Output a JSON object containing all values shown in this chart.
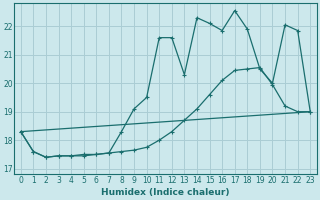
{
  "xlabel": "Humidex (Indice chaleur)",
  "background_color": "#cce8ec",
  "grid_color": "#aacdd4",
  "line_color": "#1a6e6e",
  "xlim": [
    -0.5,
    23.5
  ],
  "ylim": [
    16.8,
    22.8
  ],
  "yticks": [
    17,
    18,
    19,
    20,
    21,
    22
  ],
  "xticks": [
    0,
    1,
    2,
    3,
    4,
    5,
    6,
    7,
    8,
    9,
    10,
    11,
    12,
    13,
    14,
    15,
    16,
    17,
    18,
    19,
    20,
    21,
    22,
    23
  ],
  "line1_x": [
    0,
    1,
    2,
    3,
    4,
    5,
    6,
    7,
    8,
    9,
    10,
    11,
    12,
    13,
    14,
    15,
    16,
    17,
    18,
    19,
    20,
    21,
    22,
    23
  ],
  "line1_y": [
    18.3,
    17.6,
    17.4,
    17.45,
    17.45,
    17.45,
    17.5,
    17.55,
    18.3,
    19.1,
    19.5,
    21.6,
    21.6,
    20.3,
    22.3,
    22.1,
    21.85,
    22.55,
    21.9,
    20.5,
    20.0,
    22.05,
    21.85,
    19.0
  ],
  "line2_x": [
    0,
    1,
    2,
    3,
    4,
    5,
    6,
    7,
    8,
    9,
    10,
    11,
    12,
    13,
    14,
    15,
    16,
    17,
    18,
    19,
    20,
    21,
    22,
    23
  ],
  "line2_y": [
    18.3,
    17.6,
    17.4,
    17.45,
    17.45,
    17.5,
    17.5,
    17.55,
    17.6,
    17.65,
    17.75,
    18.0,
    18.3,
    18.7,
    19.1,
    19.6,
    20.1,
    20.45,
    20.5,
    20.55,
    19.95,
    19.2,
    19.0,
    19.0
  ],
  "line3_x": [
    0,
    23
  ],
  "line3_y": [
    18.3,
    19.0
  ]
}
